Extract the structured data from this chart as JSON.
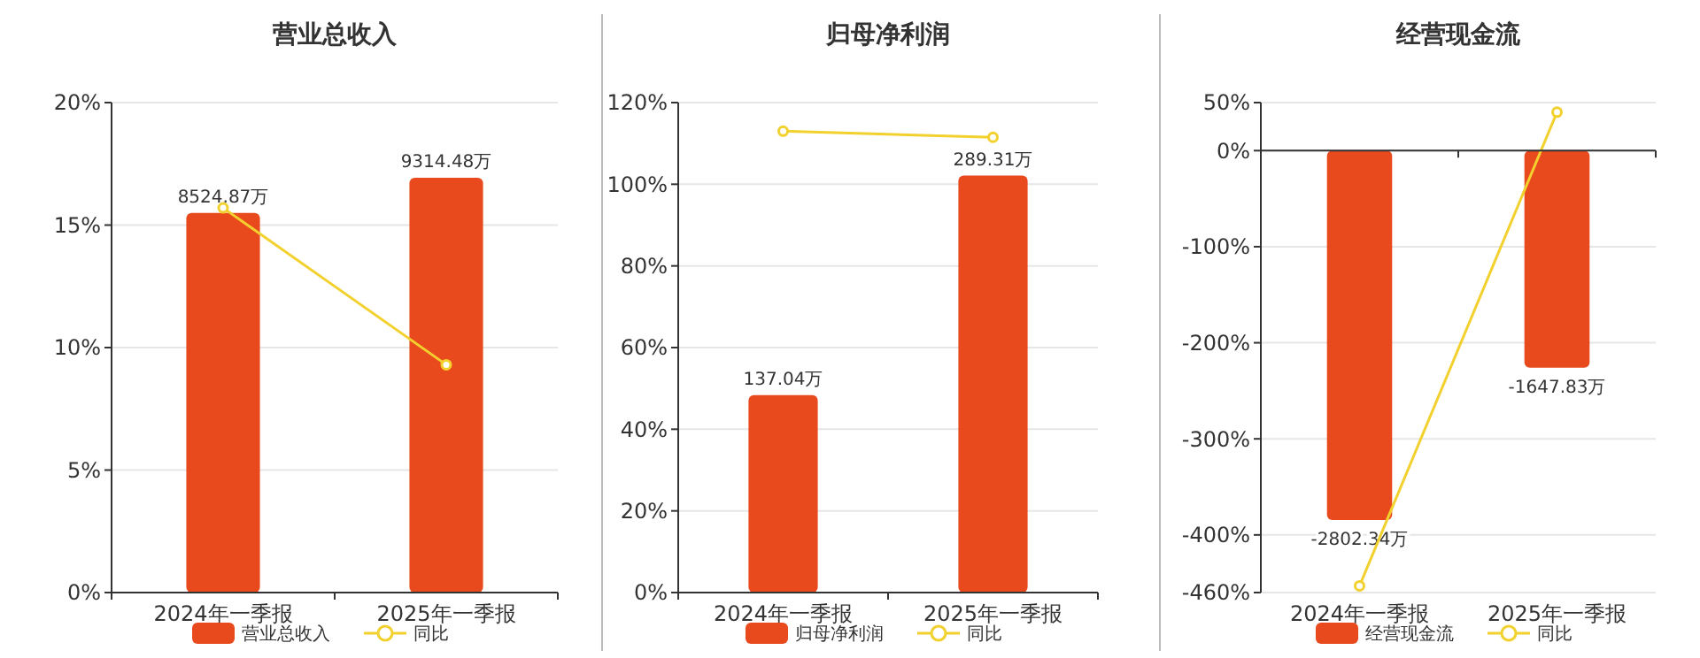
{
  "chart_data": [
    {
      "type": "bar",
      "title": "营业总收入",
      "categories": [
        "2024年一季报",
        "2025年一季报"
      ],
      "series": [
        {
          "name": "营业总收入",
          "color": "#e8491d",
          "axis": "y2",
          "values": [
            8524.87,
            9314.48
          ],
          "value_labels": [
            "8524.87万",
            "9314.48万"
          ]
        },
        {
          "name": "同比",
          "type": "line",
          "color": "#f2d12e",
          "values": [
            15.7,
            9.3
          ]
        }
      ],
      "ylim": [
        0,
        20
      ],
      "yticks": [
        {
          "value": 0,
          "label": "0%"
        },
        {
          "value": 5,
          "label": "5%"
        },
        {
          "value": 10,
          "label": "10%"
        },
        {
          "value": 15,
          "label": "15%"
        },
        {
          "value": 20,
          "label": "20%"
        }
      ],
      "y2lim": [
        0,
        11000
      ],
      "grid": "y",
      "legend": "bottom",
      "marker": "circle"
    },
    {
      "type": "bar",
      "title": "归母净利润",
      "categories": [
        "2024年一季报",
        "2025年一季报"
      ],
      "series": [
        {
          "name": "归母净利润",
          "color": "#e8491d",
          "axis": "y2",
          "values": [
            137.04,
            289.31
          ],
          "value_labels": [
            "137.04万",
            "289.31万"
          ]
        },
        {
          "name": "同比",
          "type": "line",
          "color": "#f2d12e",
          "values": [
            113,
            111.5
          ]
        }
      ],
      "ylim": [
        0,
        120
      ],
      "yticks": [
        {
          "value": 0,
          "label": "0%"
        },
        {
          "value": 20,
          "label": "20%"
        },
        {
          "value": 40,
          "label": "40%"
        },
        {
          "value": 60,
          "label": "60%"
        },
        {
          "value": 80,
          "label": "80%"
        },
        {
          "value": 100,
          "label": "100%"
        },
        {
          "value": 120,
          "label": "120%"
        }
      ],
      "y2lim": [
        0,
        340
      ],
      "grid": "y",
      "legend": "bottom",
      "marker": "circle"
    },
    {
      "type": "bar",
      "title": "经营现金流",
      "categories": [
        "2024年一季报",
        "2025年一季报"
      ],
      "series": [
        {
          "name": "经营现金流",
          "color": "#e8491d",
          "axis": "y2",
          "values": [
            -2802.34,
            -1647.83
          ],
          "value_labels": [
            "-2802.34万",
            "-1647.83万"
          ]
        },
        {
          "name": "同比",
          "type": "line",
          "color": "#f2d12e",
          "values": [
            -453,
            40
          ]
        }
      ],
      "ylim": [
        -460,
        50
      ],
      "yticks": [
        {
          "value": -460,
          "label": "-460%"
        },
        {
          "value": -400,
          "label": "-400%"
        },
        {
          "value": -300,
          "label": "-300%"
        },
        {
          "value": -200,
          "label": "-200%"
        },
        {
          "value": -100,
          "label": "-100%"
        },
        {
          "value": 0,
          "label": "0%"
        },
        {
          "value": 50,
          "label": "50%"
        }
      ],
      "y2lim": [
        -3353,
        364
      ],
      "grid": "y",
      "legend": "bottom",
      "marker": "circle"
    }
  ]
}
